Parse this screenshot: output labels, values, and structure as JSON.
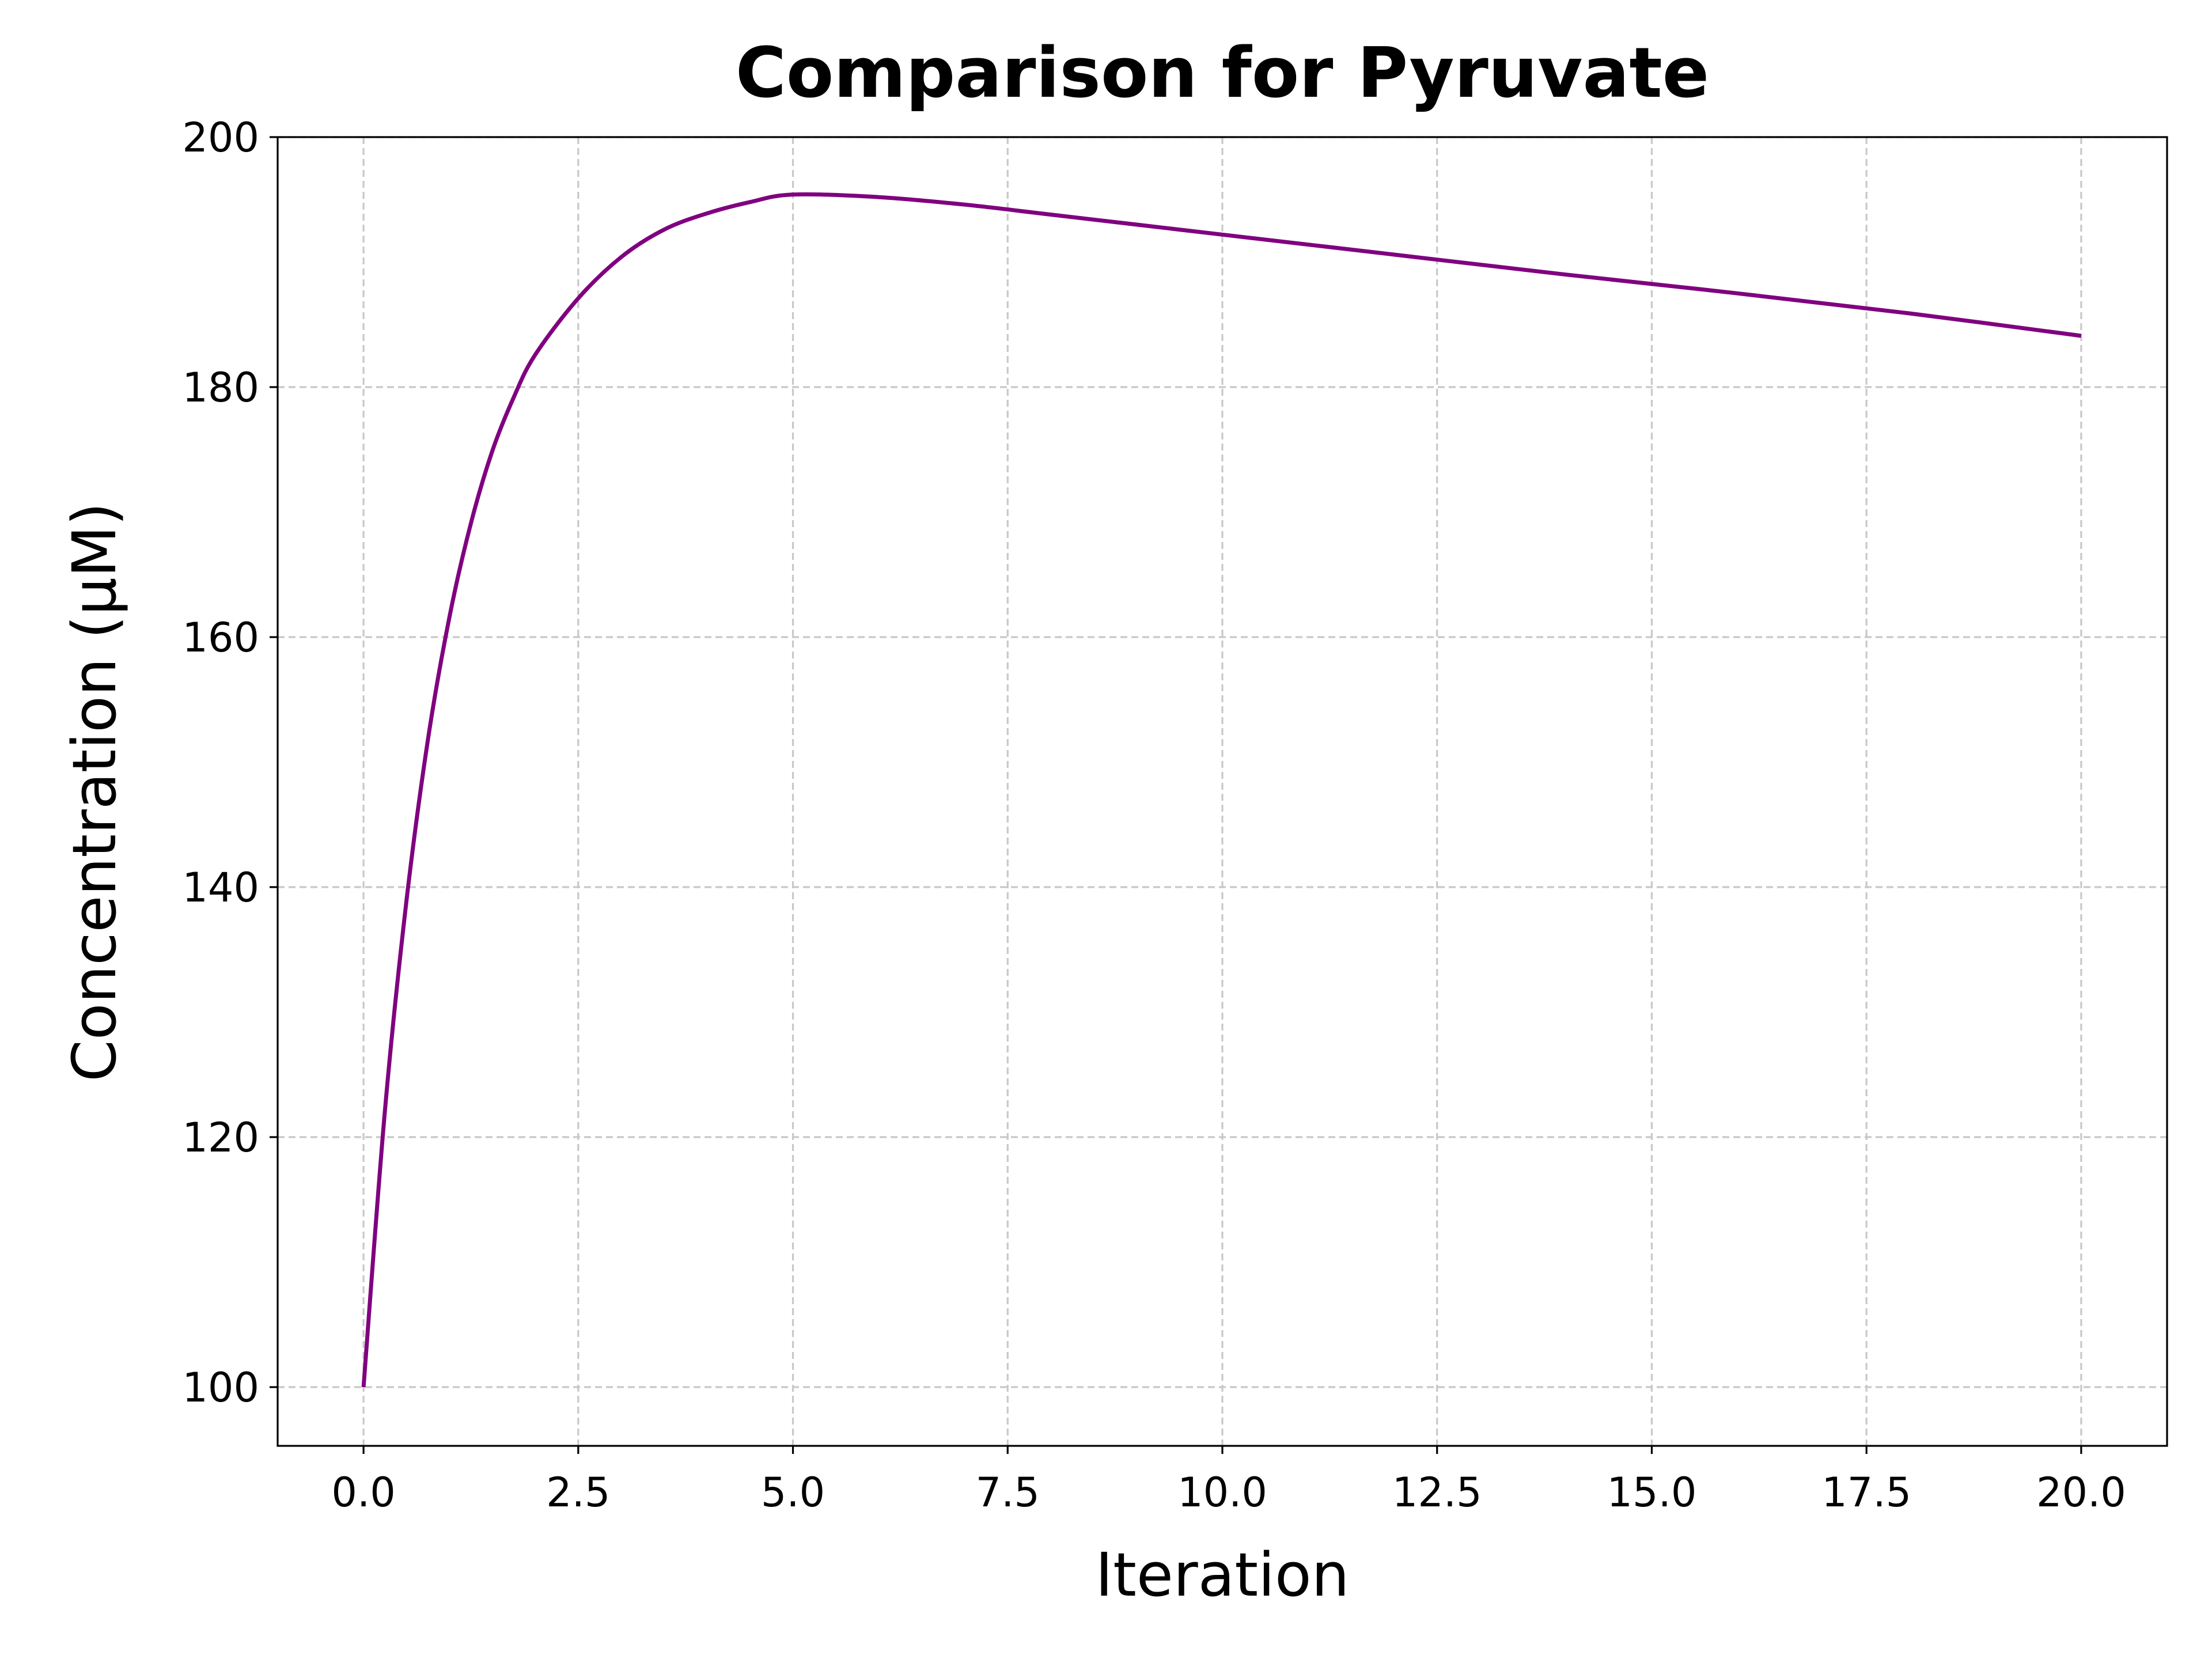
{
  "chart_data": {
    "type": "line",
    "title": "Comparison for Pyruvate",
    "xlabel": "Iteration",
    "ylabel": "Concentration (μM)",
    "xlim": [
      -1.0,
      21.0
    ],
    "ylim": [
      95.3,
      200.0
    ],
    "xticks": [
      0.0,
      2.5,
      5.0,
      7.5,
      10.0,
      12.5,
      15.0,
      17.5,
      20.0
    ],
    "xtick_labels": [
      "0.0",
      "2.5",
      "5.0",
      "7.5",
      "10.0",
      "12.5",
      "15.0",
      "17.5",
      "20.0"
    ],
    "yticks": [
      100,
      120,
      140,
      160,
      180,
      200
    ],
    "ytick_labels": [
      "100",
      "120",
      "140",
      "160",
      "180",
      "200"
    ],
    "grid": true,
    "legend": "none",
    "series": [
      {
        "color": "#800080",
        "x": [
          0.0,
          0.25,
          0.5,
          0.75,
          1.0,
          1.25,
          1.5,
          1.75,
          2.0,
          2.5,
          3.0,
          3.5,
          4.0,
          4.5,
          5.0,
          6.0,
          7.0,
          8.0,
          9.0,
          10.0,
          12.0,
          14.0,
          16.0,
          18.0,
          20.0
        ],
        "y": [
          100.0,
          122.2,
          138.9,
          151.8,
          161.6,
          169.1,
          174.9,
          179.2,
          182.6,
          187.1,
          190.4,
          192.6,
          193.9,
          194.8,
          195.4,
          195.2,
          194.6,
          193.8,
          193.0,
          192.2,
          190.6,
          189.0,
          187.5,
          185.9,
          184.1
        ]
      }
    ]
  }
}
